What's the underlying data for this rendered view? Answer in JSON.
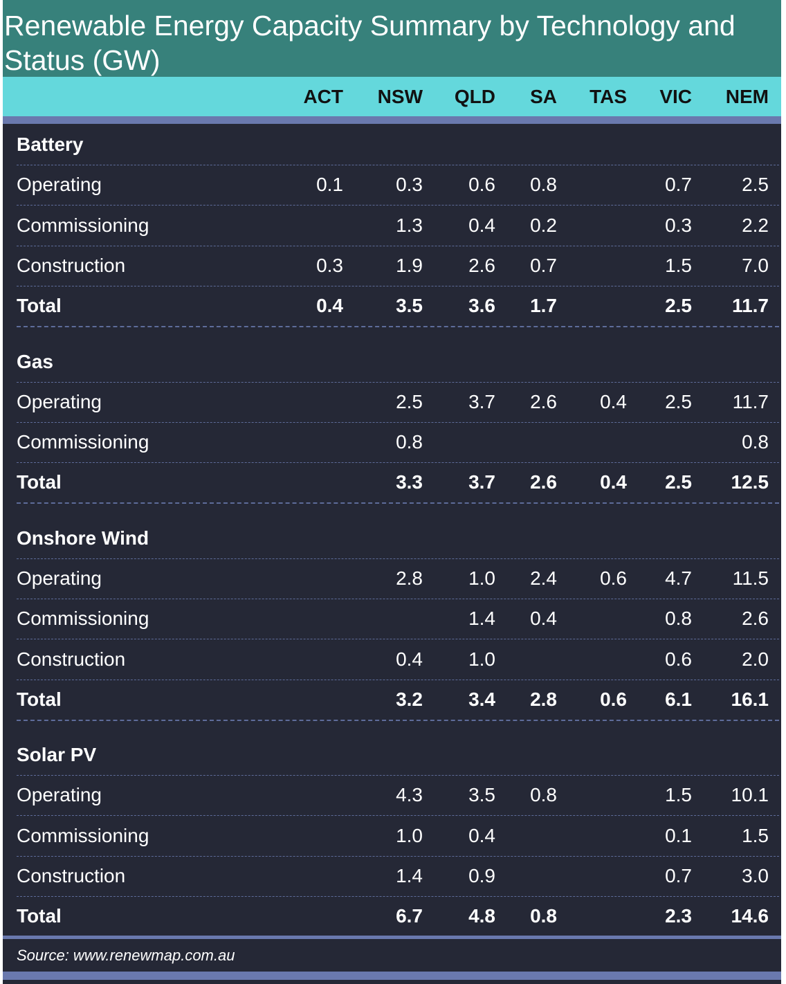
{
  "chart_data": {
    "type": "table",
    "title": "Renewable Energy Capacity Summary by Technology and Status (GW)",
    "columns": [
      "ACT",
      "NSW",
      "QLD",
      "SA",
      "TAS",
      "VIC",
      "NEM"
    ],
    "groups": [
      {
        "name": "Battery",
        "rows": [
          {
            "label": "Operating",
            "values": [
              "0.1",
              "0.3",
              "0.6",
              "0.8",
              "",
              "0.7",
              "2.5"
            ]
          },
          {
            "label": "Commissioning",
            "values": [
              "",
              "1.3",
              "0.4",
              "0.2",
              "",
              "0.3",
              "2.2"
            ]
          },
          {
            "label": "Construction",
            "values": [
              "0.3",
              "1.9",
              "2.6",
              "0.7",
              "",
              "1.5",
              "7.0"
            ]
          },
          {
            "label": "Total",
            "values": [
              "0.4",
              "3.5",
              "3.6",
              "1.7",
              "",
              "2.5",
              "11.7"
            ],
            "total": true
          }
        ]
      },
      {
        "name": "Gas",
        "rows": [
          {
            "label": "Operating",
            "values": [
              "",
              "2.5",
              "3.7",
              "2.6",
              "0.4",
              "2.5",
              "11.7"
            ]
          },
          {
            "label": "Commissioning",
            "values": [
              "",
              "0.8",
              "",
              "",
              "",
              "",
              "0.8"
            ]
          },
          {
            "label": "Total",
            "values": [
              "",
              "3.3",
              "3.7",
              "2.6",
              "0.4",
              "2.5",
              "12.5"
            ],
            "total": true
          }
        ]
      },
      {
        "name": "Onshore Wind",
        "rows": [
          {
            "label": "Operating",
            "values": [
              "",
              "2.8",
              "1.0",
              "2.4",
              "0.6",
              "4.7",
              "11.5"
            ]
          },
          {
            "label": "Commissioning",
            "values": [
              "",
              "",
              "1.4",
              "0.4",
              "",
              "0.8",
              "2.6"
            ]
          },
          {
            "label": "Construction",
            "values": [
              "",
              "0.4",
              "1.0",
              "",
              "",
              "0.6",
              "2.0"
            ]
          },
          {
            "label": "Total",
            "values": [
              "",
              "3.2",
              "3.4",
              "2.8",
              "0.6",
              "6.1",
              "16.1"
            ],
            "total": true
          }
        ]
      },
      {
        "name": "Solar PV",
        "rows": [
          {
            "label": "Operating",
            "values": [
              "",
              "4.3",
              "3.5",
              "0.8",
              "",
              "1.5",
              "10.1"
            ]
          },
          {
            "label": "Commissioning",
            "values": [
              "",
              "1.0",
              "0.4",
              "",
              "",
              "0.1",
              "1.5"
            ]
          },
          {
            "label": "Construction",
            "values": [
              "",
              "1.4",
              "0.9",
              "",
              "",
              "0.7",
              "3.0"
            ]
          },
          {
            "label": "Total",
            "values": [
              "",
              "6.7",
              "4.8",
              "0.8",
              "",
              "2.3",
              "14.6"
            ],
            "total": true
          }
        ]
      }
    ],
    "source": "Source: www.renewmap.com.au"
  }
}
